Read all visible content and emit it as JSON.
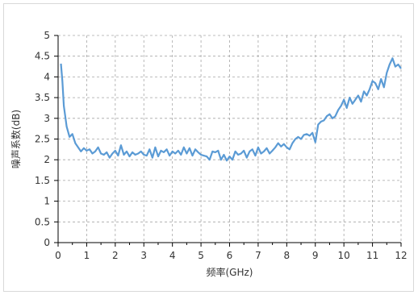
{
  "chart_data": {
    "type": "line",
    "xlabel": "频率(GHz)",
    "ylabel": "噪声系数(dB)",
    "xlim": [
      0,
      12
    ],
    "ylim": [
      0,
      5
    ],
    "x_ticks": [
      "0",
      "1",
      "2",
      "3",
      "4",
      "5",
      "6",
      "7",
      "8",
      "9",
      "10",
      "11",
      "12"
    ],
    "y_ticks": [
      "0",
      "0.5",
      "1",
      "1.5",
      "2",
      "2.5",
      "3",
      "3.5",
      "4",
      "4.5",
      "5"
    ],
    "grid": true,
    "grid_style": "dashed",
    "line_color": "#5b9bd5",
    "series": [
      {
        "x": [
          0.1,
          0.15,
          0.2,
          0.3,
          0.4,
          0.5,
          0.6,
          0.7,
          0.8,
          0.9,
          1.0,
          1.1,
          1.2,
          1.3,
          1.4,
          1.5,
          1.6,
          1.7,
          1.8,
          1.9,
          2.0,
          2.1,
          2.2,
          2.3,
          2.4,
          2.5,
          2.6,
          2.7,
          2.8,
          2.9,
          3.0,
          3.1,
          3.2,
          3.3,
          3.4,
          3.5,
          3.6,
          3.7,
          3.8,
          3.9,
          4.0,
          4.1,
          4.2,
          4.3,
          4.4,
          4.5,
          4.6,
          4.7,
          4.8,
          4.9,
          5.0,
          5.1,
          5.2,
          5.3,
          5.4,
          5.5,
          5.6,
          5.7,
          5.8,
          5.9,
          6.0,
          6.1,
          6.2,
          6.3,
          6.4,
          6.5,
          6.6,
          6.7,
          6.8,
          6.9,
          7.0,
          7.1,
          7.2,
          7.3,
          7.4,
          7.5,
          7.6,
          7.7,
          7.8,
          7.9,
          8.0,
          8.1,
          8.2,
          8.3,
          8.4,
          8.5,
          8.6,
          8.7,
          8.8,
          8.9,
          9.0,
          9.1,
          9.2,
          9.3,
          9.4,
          9.5,
          9.6,
          9.7,
          9.8,
          9.9,
          10.0,
          10.1,
          10.2,
          10.3,
          10.4,
          10.5,
          10.6,
          10.7,
          10.8,
          10.9,
          11.0,
          11.1,
          11.2,
          11.3,
          11.4,
          11.5,
          11.6,
          11.7,
          11.8,
          11.9,
          12.0
        ],
        "y": [
          4.32,
          3.9,
          3.3,
          2.8,
          2.55,
          2.62,
          2.4,
          2.3,
          2.2,
          2.28,
          2.22,
          2.25,
          2.15,
          2.2,
          2.3,
          2.15,
          2.12,
          2.18,
          2.05,
          2.15,
          2.22,
          2.1,
          2.35,
          2.12,
          2.2,
          2.08,
          2.18,
          2.12,
          2.15,
          2.2,
          2.12,
          2.1,
          2.25,
          2.05,
          2.3,
          2.08,
          2.22,
          2.18,
          2.25,
          2.1,
          2.2,
          2.15,
          2.22,
          2.12,
          2.3,
          2.15,
          2.28,
          2.1,
          2.25,
          2.18,
          2.12,
          2.1,
          2.08,
          2.0,
          2.2,
          2.18,
          2.22,
          2.0,
          2.12,
          1.98,
          2.08,
          2.0,
          2.2,
          2.12,
          2.15,
          2.22,
          2.05,
          2.2,
          2.25,
          2.1,
          2.3,
          2.15,
          2.2,
          2.28,
          2.15,
          2.22,
          2.3,
          2.4,
          2.32,
          2.38,
          2.3,
          2.25,
          2.4,
          2.5,
          2.55,
          2.5,
          2.6,
          2.62,
          2.58,
          2.65,
          2.42,
          2.85,
          2.92,
          2.95,
          3.05,
          3.1,
          3.0,
          3.05,
          3.2,
          3.3,
          3.45,
          3.25,
          3.5,
          3.35,
          3.45,
          3.55,
          3.4,
          3.65,
          3.55,
          3.7,
          3.9,
          3.85,
          3.7,
          3.95,
          3.75,
          4.1,
          4.3,
          4.45,
          4.25,
          4.3,
          4.2
        ]
      }
    ]
  }
}
